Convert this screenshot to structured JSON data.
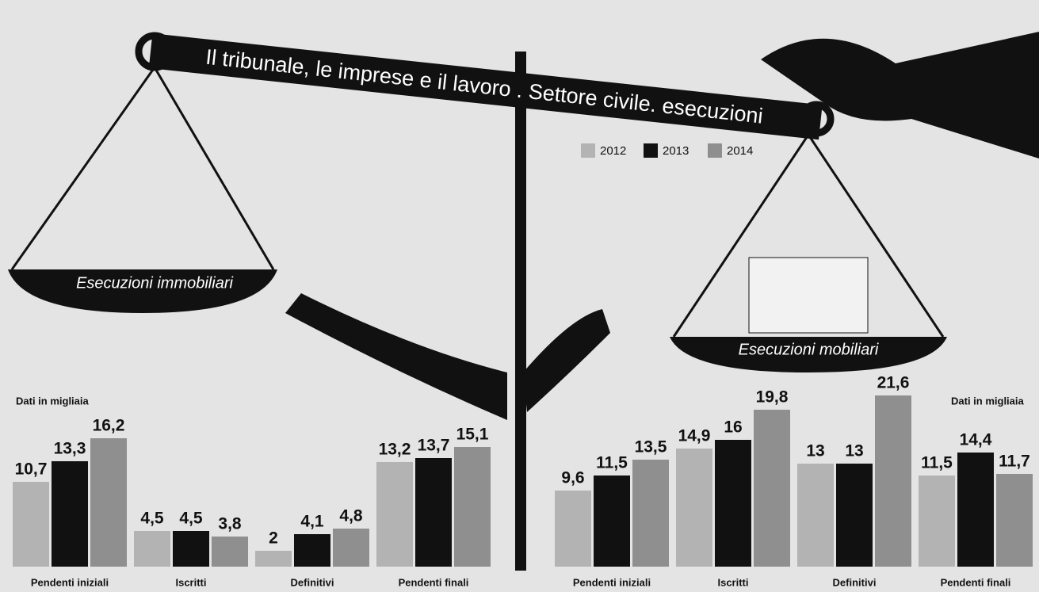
{
  "title": "Il tribunale, le imprese e il lavoro . Settore civile. esecuzioni",
  "chart_data": [
    {
      "type": "bar",
      "title": "Esecuzioni immobiliari",
      "subtitle": "Dati in migliaia",
      "categories": [
        "Pendenti iniziali",
        "Iscritti",
        "Definitivi",
        "Pendenti finali"
      ],
      "series": [
        {
          "name": "2012",
          "color": "#b3b3b3",
          "values": [
            10.7,
            4.5,
            2,
            13.2
          ],
          "value_labels": [
            "10,7",
            "4,5",
            "2",
            "13,2"
          ]
        },
        {
          "name": "2013",
          "color": "#111111",
          "values": [
            13.3,
            4.5,
            4.1,
            13.7
          ],
          "value_labels": [
            "13,3",
            "4,5",
            "4,1",
            "13,7"
          ]
        },
        {
          "name": "2014",
          "color": "#8f8f8f",
          "values": [
            16.2,
            3.8,
            4.8,
            15.1
          ],
          "value_labels": [
            "16,2",
            "3,8",
            "4,8",
            "15,1"
          ]
        }
      ]
    },
    {
      "type": "bar",
      "title": "Esecuzioni mobiliari",
      "subtitle": "Dati in migliaia",
      "categories": [
        "Pendenti iniziali",
        "Iscritti",
        "Definitivi",
        "Pendenti finali"
      ],
      "series": [
        {
          "name": "2012",
          "color": "#b3b3b3",
          "values": [
            9.6,
            14.9,
            13,
            11.5
          ],
          "value_labels": [
            "9,6",
            "14,9",
            "13",
            "11,5"
          ]
        },
        {
          "name": "2013",
          "color": "#111111",
          "values": [
            11.5,
            16,
            13,
            14.4
          ],
          "value_labels": [
            "11,5",
            "16",
            "13",
            "14,4"
          ]
        },
        {
          "name": "2014",
          "color": "#8f8f8f",
          "values": [
            13.5,
            19.8,
            21.6,
            11.7
          ],
          "value_labels": [
            "13,5",
            "19,8",
            "21,6",
            "11,7"
          ]
        }
      ]
    }
  ]
}
